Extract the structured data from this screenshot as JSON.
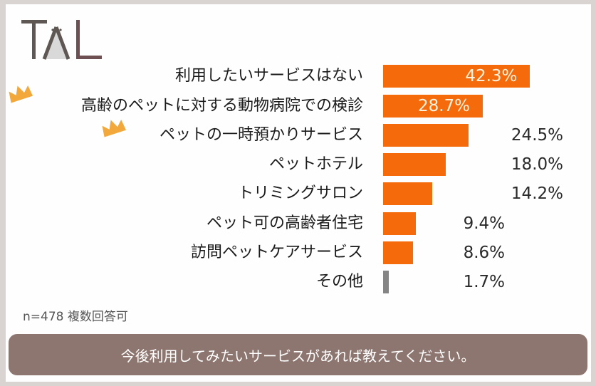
{
  "logo_text": "TAL",
  "chart_data": {
    "type": "bar",
    "orientation": "horizontal",
    "categories": [
      "利用したいサービスはない",
      "高齢のペットに対する動物病院での検診",
      "ペットの一時預かりサービス",
      "ペットホテル",
      "トリミングサロン",
      "ペット可の高齢者住宅",
      "訪問ペットケアサービス",
      "その他"
    ],
    "values": [
      42.3,
      28.7,
      24.5,
      18.0,
      14.2,
      9.4,
      8.6,
      1.7
    ],
    "value_labels": [
      "42.3%",
      "28.7%",
      "24.5%",
      "18.0%",
      "14.2%",
      "9.4%",
      "8.6%",
      "1.7%"
    ],
    "unit": "%",
    "colors": {
      "bar": "#f56b0c",
      "other": "#858585",
      "crown": "#f2a83a"
    },
    "highlighted_with_crown": [
      1,
      2
    ],
    "grid": false
  },
  "note": "n=478 複数回答可",
  "banner": "今後利用してみたいサービスがあれば教えてください。"
}
